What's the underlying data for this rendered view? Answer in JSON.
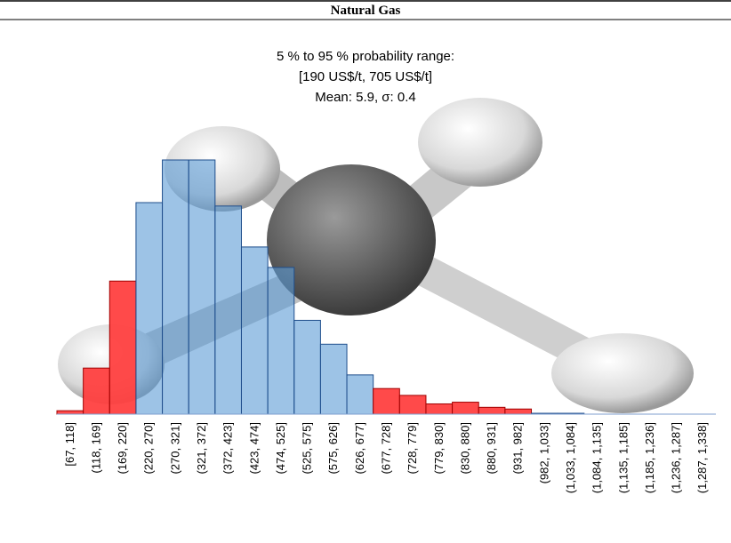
{
  "chart_data": {
    "type": "histogram",
    "title": "Natural Gas",
    "subtitle": [
      "5 % to 95 % probability range:",
      "[190 US$/t, 705 US$/t]",
      "Mean: 5.9, σ: 0.4"
    ],
    "categories": [
      "[67, 118]",
      "(118, 169]",
      "(169, 220]",
      "(220, 270]",
      "(270, 321]",
      "(321, 372]",
      "(372, 423]",
      "(423, 474]",
      "(474, 525]",
      "(525, 575]",
      "(575, 626]",
      "(626, 677]",
      "(677, 728]",
      "(728, 779]",
      "(779, 830]",
      "(830, 880]",
      "(880, 931]",
      "(931, 982]",
      "(982, 1,033]",
      "(1,033, 1,084]",
      "(1,084, 1,135]",
      "(1,135, 1,185]",
      "(1,185, 1,236]",
      "(1,236, 1,287]",
      "(1,287, 1,338]"
    ],
    "values": [
      0.2,
      2.7,
      7.8,
      12.4,
      14.9,
      14.9,
      12.2,
      9.8,
      8.6,
      5.5,
      4.1,
      2.3,
      1.5,
      1.1,
      0.6,
      0.7,
      0.4,
      0.3,
      0.05,
      0.05,
      0,
      0,
      0,
      0,
      0
    ],
    "colors": [
      "#ff4040",
      "#ff4040",
      "#ff4040",
      "#5b9bd5",
      "#5b9bd5",
      "#5b9bd5",
      "#5b9bd5",
      "#5b9bd5",
      "#5b9bd5",
      "#5b9bd5",
      "#5b9bd5",
      "#5b9bd5",
      "#ff4040",
      "#ff4040",
      "#ff4040",
      "#ff4040",
      "#ff4040",
      "#ff4040",
      "#5b9bd5",
      "#5b9bd5",
      "#5b9bd5",
      "#5b9bd5",
      "#5b9bd5",
      "#5b9bd5",
      "#5b9bd5"
    ]
  }
}
